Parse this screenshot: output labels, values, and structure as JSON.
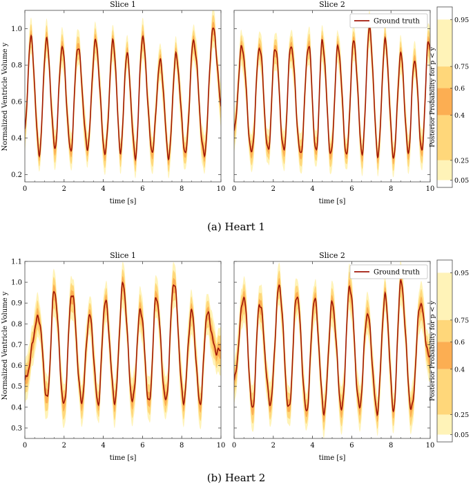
{
  "colors": {
    "ground_truth": "#a01608",
    "band_05_25": "#fff3b8",
    "band_25_40": "#ffd77a",
    "band_40_60": "#fcae52",
    "band_60_75": "#ffd77a",
    "band_75_95": "#fff3b8"
  },
  "colorbar": {
    "label": "Posterior Probability for p < y",
    "ticks": [
      "0.95",
      "0.75",
      "0.6",
      "0.4",
      "0.25",
      "0.05"
    ]
  },
  "figures": [
    {
      "caption": "(a) Heart 1",
      "ylabel": "Normalized Ventricle Volume y",
      "yticks": [
        "0.2",
        "0.4",
        "0.6",
        "0.8",
        "1.0"
      ],
      "legend_label": "Ground truth"
    },
    {
      "caption": "(b) Heart 2",
      "ylabel": "Normalized Ventricle Volume y",
      "yticks": [
        "0.3",
        "0.4",
        "0.5",
        "0.6",
        "0.7",
        "0.8",
        "0.9",
        "1.0",
        "1.1"
      ],
      "legend_label": "Ground truth"
    }
  ],
  "chart_data": [
    {
      "type": "area",
      "title": "Slice 1",
      "xlabel": "time [s]",
      "xlim": [
        0,
        10
      ],
      "ylim": [
        0.16,
        1.1
      ],
      "xticks": [
        0,
        2,
        4,
        6,
        8,
        10
      ],
      "cycle_peak_times": [
        0.3,
        1.1,
        1.9,
        2.7,
        3.6,
        4.5,
        5.2,
        6.0,
        6.9,
        7.7,
        8.6,
        9.6
      ],
      "cycle_peaks": [
        0.95,
        0.94,
        0.9,
        0.9,
        0.93,
        0.93,
        0.86,
        0.95,
        0.82,
        0.85,
        0.93,
        1.0
      ],
      "cycle_troughs": [
        0.33,
        0.32,
        0.35,
        0.33,
        0.35,
        0.32,
        0.33,
        0.3,
        0.33,
        0.3,
        0.32,
        0.31
      ],
      "series": [
        {
          "name": "Ground truth"
        }
      ],
      "legend_position": "none"
    },
    {
      "type": "area",
      "title": "Slice 2",
      "xlabel": "time [s]",
      "xlim": [
        0,
        10
      ],
      "ylim": [
        0.16,
        1.1
      ],
      "xticks": [
        0,
        2,
        4,
        6,
        8,
        10
      ],
      "cycle_peak_times": [
        0.4,
        1.3,
        2.1,
        2.9,
        3.8,
        4.5,
        5.3,
        6.1,
        6.9,
        7.7,
        8.5,
        9.2,
        9.9
      ],
      "cycle_peaks": [
        0.9,
        0.9,
        0.9,
        0.91,
        0.91,
        0.93,
        0.9,
        0.93,
        1.0,
        0.93,
        0.86,
        0.83,
        0.92
      ],
      "cycle_troughs": [
        0.32,
        0.32,
        0.33,
        0.33,
        0.31,
        0.32,
        0.31,
        0.31,
        0.32,
        0.31,
        0.3,
        0.32,
        0.33
      ],
      "series": [
        {
          "name": "Ground truth"
        }
      ],
      "legend_position": "top-right"
    },
    {
      "type": "area",
      "title": "Slice 1",
      "xlabel": "time [s]",
      "xlim": [
        0,
        10
      ],
      "ylim": [
        0.25,
        1.1
      ],
      "xticks": [
        0,
        2,
        4,
        6,
        8,
        10
      ],
      "cycle_peak_times": [
        0.7,
        1.5,
        2.4,
        3.3,
        4.1,
        5.0,
        5.9,
        6.7,
        7.6,
        8.5,
        9.3
      ],
      "cycle_peaks": [
        0.83,
        0.96,
        0.95,
        0.84,
        0.91,
        0.99,
        0.87,
        0.93,
        1.0,
        0.86,
        0.85
      ],
      "cycle_troughs": [
        0.41,
        0.44,
        0.41,
        0.43,
        0.42,
        0.43,
        0.43,
        0.42,
        0.43,
        0.43,
        0.42
      ],
      "series": [
        {
          "name": "Ground truth"
        }
      ],
      "legend_position": "none"
    },
    {
      "type": "area",
      "title": "Slice 2",
      "xlabel": "time [s]",
      "xlim": [
        0,
        10
      ],
      "ylim": [
        0.25,
        1.1
      ],
      "xticks": [
        0,
        2,
        4,
        6,
        8,
        10
      ],
      "cycle_peak_times": [
        0.5,
        1.3,
        2.3,
        3.2,
        4.1,
        5.0,
        5.9,
        6.8,
        7.7,
        8.5,
        9.5
      ],
      "cycle_peaks": [
        0.93,
        0.9,
        0.98,
        0.94,
        0.92,
        0.9,
        0.98,
        0.85,
        0.93,
        1.0,
        0.9
      ],
      "cycle_troughs": [
        0.41,
        0.39,
        0.42,
        0.39,
        0.38,
        0.38,
        0.39,
        0.4,
        0.38,
        0.39,
        0.39
      ],
      "series": [
        {
          "name": "Ground truth"
        }
      ],
      "legend_position": "top-right"
    }
  ]
}
